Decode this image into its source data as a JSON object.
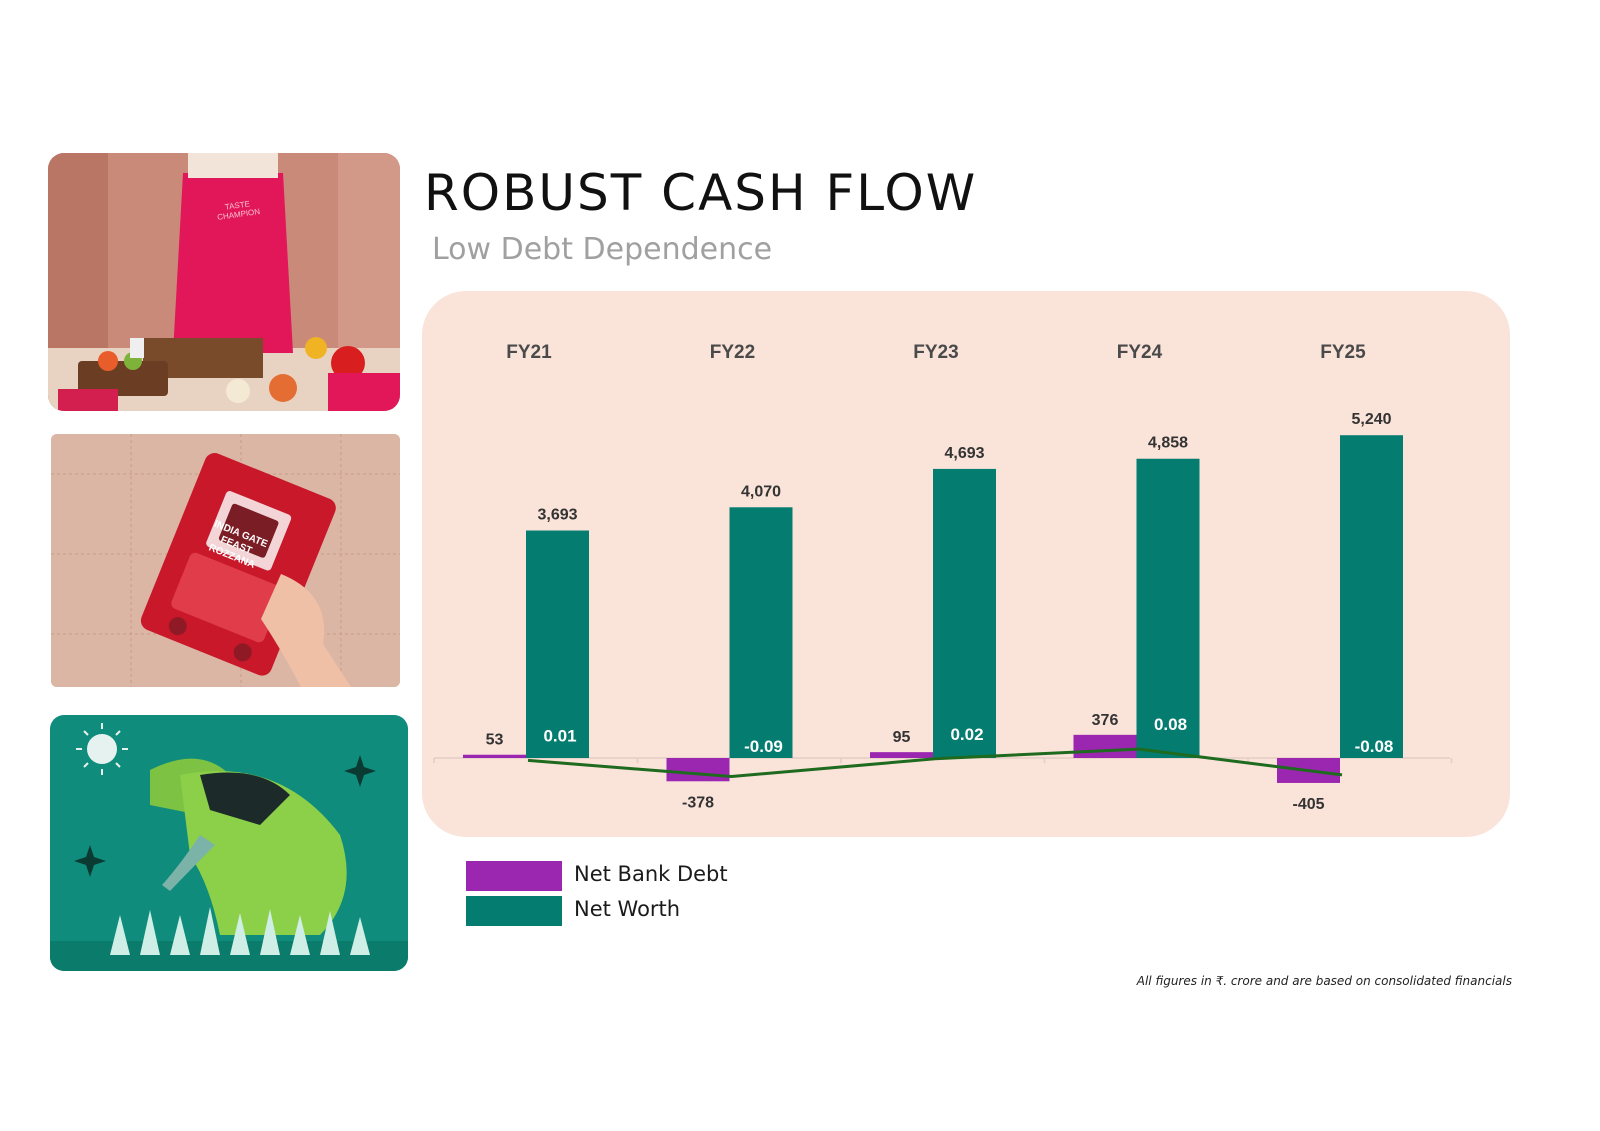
{
  "header": {
    "title": "ROBUST CASH FLOW",
    "subtitle": "Low Debt Dependence"
  },
  "photos": [
    {
      "name": "cooking-photo",
      "alt_text": "TASTE CHAMPION"
    },
    {
      "name": "rice-pack-photo",
      "alt_text": "INDIA GATE FEAST ROZZANA"
    },
    {
      "name": "farmer-illustration"
    }
  ],
  "chart_data": {
    "type": "bar",
    "categories": [
      "FY21",
      "FY22",
      "FY23",
      "FY24",
      "FY25"
    ],
    "series": [
      {
        "name": "Net Bank Debt",
        "type": "bar",
        "color": "#9b27b0",
        "values": [
          53,
          -378,
          95,
          376,
          -405
        ],
        "labels": [
          "53",
          "-378",
          "95",
          "376",
          "-405"
        ]
      },
      {
        "name": "Net Worth",
        "type": "bar",
        "color": "#047c70",
        "values": [
          3693,
          4070,
          4693,
          4858,
          5240
        ],
        "labels": [
          "3,693",
          "4,070",
          "4,693",
          "4,858",
          "5,240"
        ]
      },
      {
        "type": "line",
        "color": "#1e6a1e",
        "values": [
          0.01,
          -0.09,
          0.02,
          0.08,
          -0.08
        ],
        "labels": [
          "0.01",
          "-0.09",
          "0.02",
          "0.08",
          "-0.08"
        ]
      }
    ]
  },
  "legend": {
    "items": [
      {
        "label": "Net Bank Debt",
        "color": "#9b27b0"
      },
      {
        "label": "Net Worth",
        "color": "#047c70"
      }
    ]
  },
  "footnote": "All figures  in ₹. crore and are based on consolidated financials"
}
